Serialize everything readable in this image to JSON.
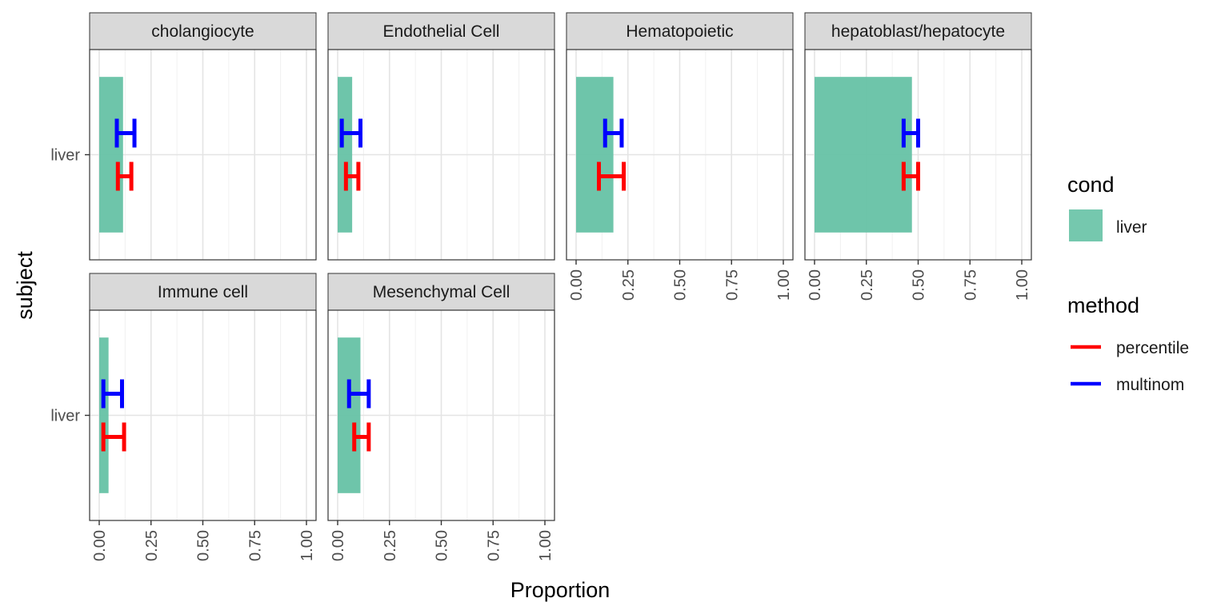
{
  "chart_data": {
    "type": "bar",
    "facet_variable": "cell type",
    "xlabel": "Proportion",
    "ylabel": "subject",
    "xlim": [
      0,
      1
    ],
    "x_ticks": [
      "0.00",
      "0.25",
      "0.50",
      "0.75",
      "1.00"
    ],
    "y_categories": [
      "liver"
    ],
    "grid": true,
    "legend_position": "right",
    "legends": [
      {
        "title": "cond",
        "kind": "fill",
        "entries": [
          {
            "label": "liver",
            "color": "#66c2a5"
          }
        ]
      },
      {
        "title": "method",
        "kind": "line",
        "entries": [
          {
            "label": "percentile",
            "color": "#ff0000"
          },
          {
            "label": "multinom",
            "color": "#0000ff"
          }
        ]
      }
    ],
    "facets": [
      {
        "label": "cholangiocyte",
        "bar": {
          "subject": "liver",
          "cond": "liver",
          "value": 0.115
        },
        "intervals": [
          {
            "method": "multinom",
            "low": 0.085,
            "high": 0.17
          },
          {
            "method": "percentile",
            "low": 0.09,
            "high": 0.155
          }
        ]
      },
      {
        "label": "Endothelial Cell",
        "bar": {
          "subject": "liver",
          "cond": "liver",
          "value": 0.07
        },
        "intervals": [
          {
            "method": "multinom",
            "low": 0.02,
            "high": 0.11
          },
          {
            "method": "percentile",
            "low": 0.04,
            "high": 0.1
          }
        ]
      },
      {
        "label": "Hematopoietic",
        "bar": {
          "subject": "liver",
          "cond": "liver",
          "value": 0.18
        },
        "intervals": [
          {
            "method": "multinom",
            "low": 0.14,
            "high": 0.22
          },
          {
            "method": "percentile",
            "low": 0.11,
            "high": 0.23
          }
        ]
      },
      {
        "label": "hepatoblast/hepatocyte",
        "bar": {
          "subject": "liver",
          "cond": "liver",
          "value": 0.47
        },
        "intervals": [
          {
            "method": "multinom",
            "low": 0.43,
            "high": 0.5
          },
          {
            "method": "percentile",
            "low": 0.43,
            "high": 0.5
          }
        ]
      },
      {
        "label": "Immune cell",
        "bar": {
          "subject": "liver",
          "cond": "liver",
          "value": 0.045
        },
        "intervals": [
          {
            "method": "multinom",
            "low": 0.02,
            "high": 0.11
          },
          {
            "method": "percentile",
            "low": 0.02,
            "high": 0.12
          }
        ]
      },
      {
        "label": "Mesenchymal Cell",
        "bar": {
          "subject": "liver",
          "cond": "liver",
          "value": 0.11
        },
        "intervals": [
          {
            "method": "multinom",
            "low": 0.055,
            "high": 0.15
          },
          {
            "method": "percentile",
            "low": 0.08,
            "high": 0.15
          }
        ]
      }
    ]
  }
}
